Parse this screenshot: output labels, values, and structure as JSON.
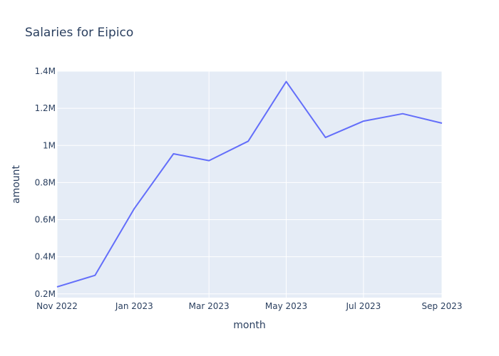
{
  "chart_data": {
    "type": "line",
    "title": "Salaries for Eipico",
    "xlabel": "month",
    "ylabel": "amount",
    "x": [
      "2022-11-01",
      "2022-12-01",
      "2023-01-01",
      "2023-02-01",
      "2023-03-01",
      "2023-04-01",
      "2023-05-01",
      "2023-06-01",
      "2023-07-01",
      "2023-08-01",
      "2023-09-01"
    ],
    "series": [
      {
        "values": [
          238000,
          300000,
          660000,
          955000,
          918000,
          1023000,
          1344000,
          1043000,
          1131000,
          1171000,
          1120000
        ]
      }
    ],
    "xlim": [
      "2022-11-01",
      "2023-09-01"
    ],
    "ylim": [
      0.18,
      1.4
    ],
    "x_ticks": [
      {
        "date": "2022-11-01",
        "label": "Nov 2022"
      },
      {
        "date": "2023-01-01",
        "label": "Jan 2023"
      },
      {
        "date": "2023-03-01",
        "label": "Mar 2023"
      },
      {
        "date": "2023-05-01",
        "label": "May 2023"
      },
      {
        "date": "2023-07-01",
        "label": "Jul 2023"
      },
      {
        "date": "2023-09-01",
        "label": "Sep 2023"
      }
    ],
    "y_ticks": [
      {
        "value": 200000,
        "label": "0.2M"
      },
      {
        "value": 400000,
        "label": "0.4M"
      },
      {
        "value": 600000,
        "label": "0.6M"
      },
      {
        "value": 800000,
        "label": "0.8M"
      },
      {
        "value": 1000000,
        "label": "1M"
      },
      {
        "value": 1200000,
        "label": "1.2M"
      },
      {
        "value": 1400000,
        "label": "1.4M"
      }
    ],
    "grid": true,
    "colors": {
      "line": "#636efa",
      "plot_bg": "#e5ecf6",
      "grid": "#ffffff",
      "text": "#2a3f5f"
    }
  }
}
